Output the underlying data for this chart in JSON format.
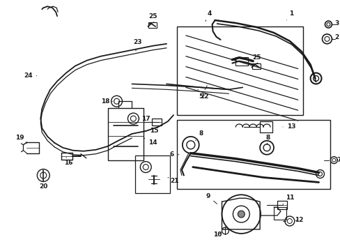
{
  "bg_color": "#ffffff",
  "line_color": "#1a1a1a",
  "fig_width": 4.89,
  "fig_height": 3.6,
  "dpi": 100,
  "label_fs": 7.0,
  "lw_main": 1.2,
  "lw_thin": 0.7
}
